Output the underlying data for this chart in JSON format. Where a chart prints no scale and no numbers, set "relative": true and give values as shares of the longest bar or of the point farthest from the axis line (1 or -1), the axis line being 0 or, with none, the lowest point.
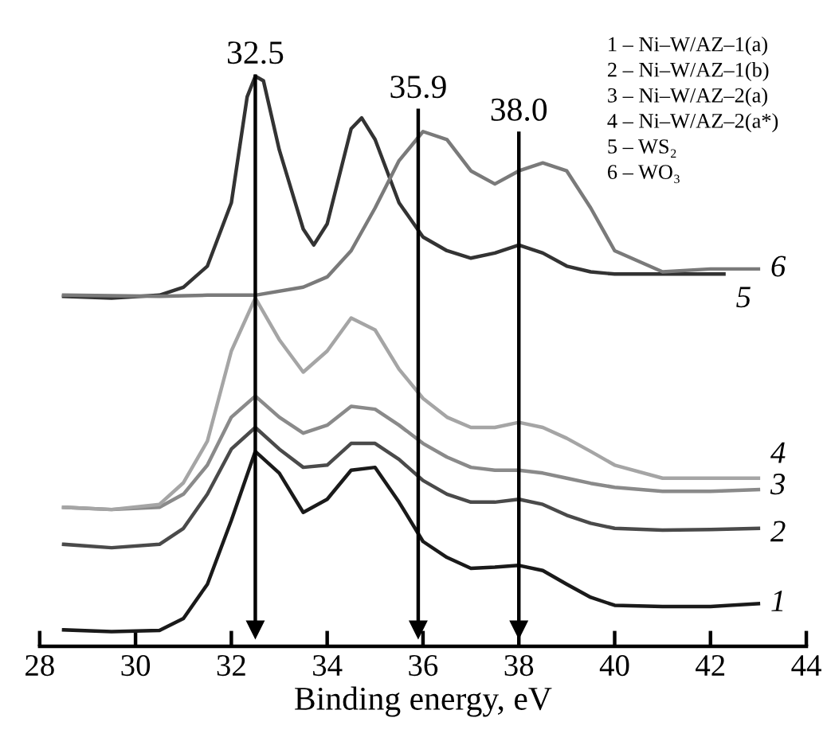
{
  "chart_data": {
    "type": "line",
    "relative": true,
    "xlabel": "Binding energy, eV",
    "xlim": [
      28,
      44
    ],
    "xticks": [
      28,
      30,
      32,
      34,
      36,
      38,
      40,
      42,
      44
    ],
    "tick_labels": "x",
    "grid": false,
    "legend": false,
    "marker": "none",
    "line_style": "solid",
    "series": [
      {
        "name": "1",
        "color": "#1a1a1a",
        "x": [
          28.5,
          29.5,
          30.5,
          31,
          31.5,
          32,
          32.5,
          33,
          33.5,
          34,
          34.5,
          35,
          35.5,
          36,
          36.5,
          37,
          37.5,
          38,
          38.5,
          39,
          39.5,
          40,
          41,
          42,
          43
        ],
        "values": [
          0.029,
          0.026,
          0.028,
          0.049,
          0.109,
          0.221,
          0.342,
          0.304,
          0.235,
          0.258,
          0.309,
          0.314,
          0.253,
          0.184,
          0.156,
          0.137,
          0.139,
          0.142,
          0.133,
          0.109,
          0.086,
          0.072,
          0.07,
          0.07,
          0.075
        ]
      },
      {
        "name": "2",
        "color": "#4a4a4a",
        "x": [
          28.5,
          29.5,
          30.5,
          31,
          31.5,
          32,
          32.5,
          33,
          33.5,
          34,
          34.5,
          35,
          35.5,
          36,
          36.5,
          37,
          37.5,
          38,
          38.5,
          39,
          39.5,
          40,
          41,
          42,
          43
        ],
        "values": [
          0.179,
          0.173,
          0.179,
          0.207,
          0.267,
          0.346,
          0.384,
          0.346,
          0.314,
          0.318,
          0.356,
          0.356,
          0.328,
          0.291,
          0.267,
          0.253,
          0.253,
          0.258,
          0.249,
          0.23,
          0.216,
          0.207,
          0.204,
          0.205,
          0.207
        ]
      },
      {
        "name": "3",
        "color": "#8a8a8a",
        "x": [
          28.5,
          29.5,
          30.5,
          31,
          31.5,
          32,
          32.5,
          33,
          33.5,
          34,
          34.5,
          35,
          35.5,
          36,
          36.5,
          37,
          37.5,
          38,
          38.5,
          39,
          39.5,
          40,
          41,
          42,
          43
        ],
        "values": [
          0.244,
          0.24,
          0.244,
          0.267,
          0.318,
          0.402,
          0.439,
          0.402,
          0.374,
          0.388,
          0.421,
          0.416,
          0.388,
          0.356,
          0.332,
          0.314,
          0.309,
          0.309,
          0.304,
          0.295,
          0.286,
          0.279,
          0.272,
          0.272,
          0.275
        ]
      },
      {
        "name": "4",
        "color": "#a5a5a5",
        "x": [
          28.5,
          29.5,
          30.5,
          31,
          31.5,
          32,
          32.5,
          33,
          33.5,
          34,
          34.5,
          35,
          35.5,
          36,
          36.5,
          37,
          37.5,
          38,
          38.5,
          39,
          39.5,
          40,
          41,
          42,
          43
        ],
        "values": [
          0.244,
          0.24,
          0.249,
          0.287,
          0.36,
          0.518,
          0.611,
          0.538,
          0.481,
          0.518,
          0.576,
          0.555,
          0.486,
          0.435,
          0.402,
          0.384,
          0.384,
          0.393,
          0.384,
          0.365,
          0.342,
          0.318,
          0.295,
          0.295,
          0.295
        ]
      },
      {
        "name": "5",
        "color": "#333333",
        "x": [
          28.5,
          29.5,
          30.5,
          31,
          31.5,
          32,
          32.33,
          32.5,
          32.67,
          33,
          33.5,
          33.72,
          34,
          34.5,
          34.72,
          35,
          35.5,
          36,
          36.5,
          37,
          37.5,
          38,
          38.5,
          39,
          39.5,
          40,
          41,
          42,
          42.28
        ],
        "values": [
          0.614,
          0.611,
          0.616,
          0.63,
          0.667,
          0.778,
          0.964,
          1,
          0.992,
          0.871,
          0.732,
          0.704,
          0.741,
          0.908,
          0.927,
          0.889,
          0.778,
          0.718,
          0.694,
          0.681,
          0.69,
          0.704,
          0.69,
          0.667,
          0.657,
          0.653,
          0.653,
          0.653,
          0.653
        ]
      },
      {
        "name": "6",
        "color": "#7a7a7a",
        "x": [
          28.5,
          30.5,
          31.5,
          32.5,
          33.5,
          34,
          34.5,
          35,
          35.5,
          36,
          36.5,
          37,
          37.5,
          38,
          38.5,
          39,
          39.5,
          40,
          41,
          42,
          43
        ],
        "values": [
          0.616,
          0.614,
          0.616,
          0.616,
          0.63,
          0.648,
          0.694,
          0.769,
          0.852,
          0.903,
          0.889,
          0.834,
          0.811,
          0.834,
          0.848,
          0.834,
          0.769,
          0.694,
          0.657,
          0.662,
          0.662
        ]
      }
    ],
    "ref_lines": [
      {
        "axis": "x",
        "value": 32.5,
        "label": "32.5",
        "color": "#000000"
      },
      {
        "axis": "x",
        "value": 35.9,
        "label": "35.9",
        "color": "#000000"
      },
      {
        "axis": "x",
        "value": 38.0,
        "label": "38.0",
        "color": "#000000"
      }
    ],
    "annotations": [
      "1 – Ni–W/AZ–1(a)",
      "2 – Ni–W/AZ–1(b)",
      "3 – Ni–W/AZ–2(a)",
      "4 – Ni–W/AZ–2(a*)",
      "5 – WS₂",
      "6 – WO₃"
    ]
  }
}
